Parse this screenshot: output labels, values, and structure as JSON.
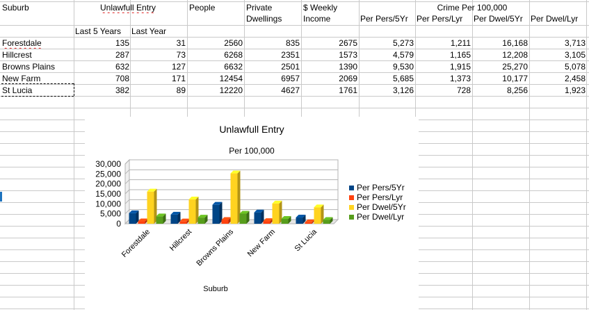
{
  "header_row1": {
    "suburb": "Suburb",
    "unlawful_entry": "Unlawfull Entry",
    "people": "People",
    "private_line1": "Private",
    "private_line2": "Dwellings",
    "weekly_line1": "$ Weekly",
    "weekly_line2": "Income",
    "crime": "Crime Per 100,000",
    "per_pers_5yr": "Per Pers/5Yr",
    "per_pers_lyr": "Per Pers/Lyr",
    "per_dwel_5yr": "Per Dwel/5Yr",
    "per_dwel_lyr": "Per Dwel/Lyr"
  },
  "header_row2": {
    "last5": "Last 5 Years",
    "lastyear": "Last Year"
  },
  "rows": [
    {
      "suburb": "Forestdale",
      "last5": "135",
      "lasty": "31",
      "people": "2560",
      "dwell": "835",
      "income": "2675",
      "pp5": "5,273",
      "ppl": "1,211",
      "pd5": "16,168",
      "pdl": "3,713"
    },
    {
      "suburb": "Hillcrest",
      "last5": "287",
      "lasty": "73",
      "people": "6268",
      "dwell": "2351",
      "income": "1573",
      "pp5": "4,579",
      "ppl": "1,165",
      "pd5": "12,208",
      "pdl": "3,105"
    },
    {
      "suburb": "Browns Plains",
      "last5": "632",
      "lasty": "127",
      "people": "6632",
      "dwell": "2501",
      "income": "1390",
      "pp5": "9,530",
      "ppl": "1,915",
      "pd5": "25,270",
      "pdl": "5,078"
    },
    {
      "suburb": "New Farm",
      "last5": "708",
      "lasty": "171",
      "people": "12454",
      "dwell": "6957",
      "income": "2069",
      "pp5": "5,685",
      "ppl": "1,373",
      "pd5": "10,177",
      "pdl": "2,458"
    },
    {
      "suburb": "St Lucia",
      "last5": "382",
      "lasty": "89",
      "people": "12220",
      "dwell": "4627",
      "income": "1761",
      "pp5": "3,126",
      "ppl": "728",
      "pd5": "8,256",
      "pdl": "1,923"
    }
  ],
  "chart_data": {
    "type": "bar",
    "title": "Unlawfull Entry",
    "subtitle": "Per 100,000",
    "xlabel": "Suburb",
    "ylabel": "",
    "categories": [
      "Forestdale",
      "Hillcrest",
      "Browns Plains",
      "New Farm",
      "St Lucia"
    ],
    "series": [
      {
        "name": "Per Pers/5Yr",
        "color": "#004586",
        "values": [
          5273,
          4579,
          9530,
          5685,
          3126
        ]
      },
      {
        "name": "Per Pers/Lyr",
        "color": "#ff420e",
        "values": [
          1211,
          1165,
          1915,
          1373,
          728
        ]
      },
      {
        "name": "Per Dwel/5Yr",
        "color": "#ffd320",
        "values": [
          16168,
          12208,
          25270,
          10177,
          8256
        ]
      },
      {
        "name": "Per Dwel/Lyr",
        "color": "#579d1c",
        "values": [
          3713,
          3105,
          5078,
          2458,
          1923
        ]
      }
    ],
    "ylim": [
      0,
      30000
    ],
    "yticks": [
      "30,000",
      "25,000",
      "20,000",
      "15,000",
      "10,000",
      "5,000",
      "0"
    ],
    "grid": true,
    "legend": "right"
  }
}
